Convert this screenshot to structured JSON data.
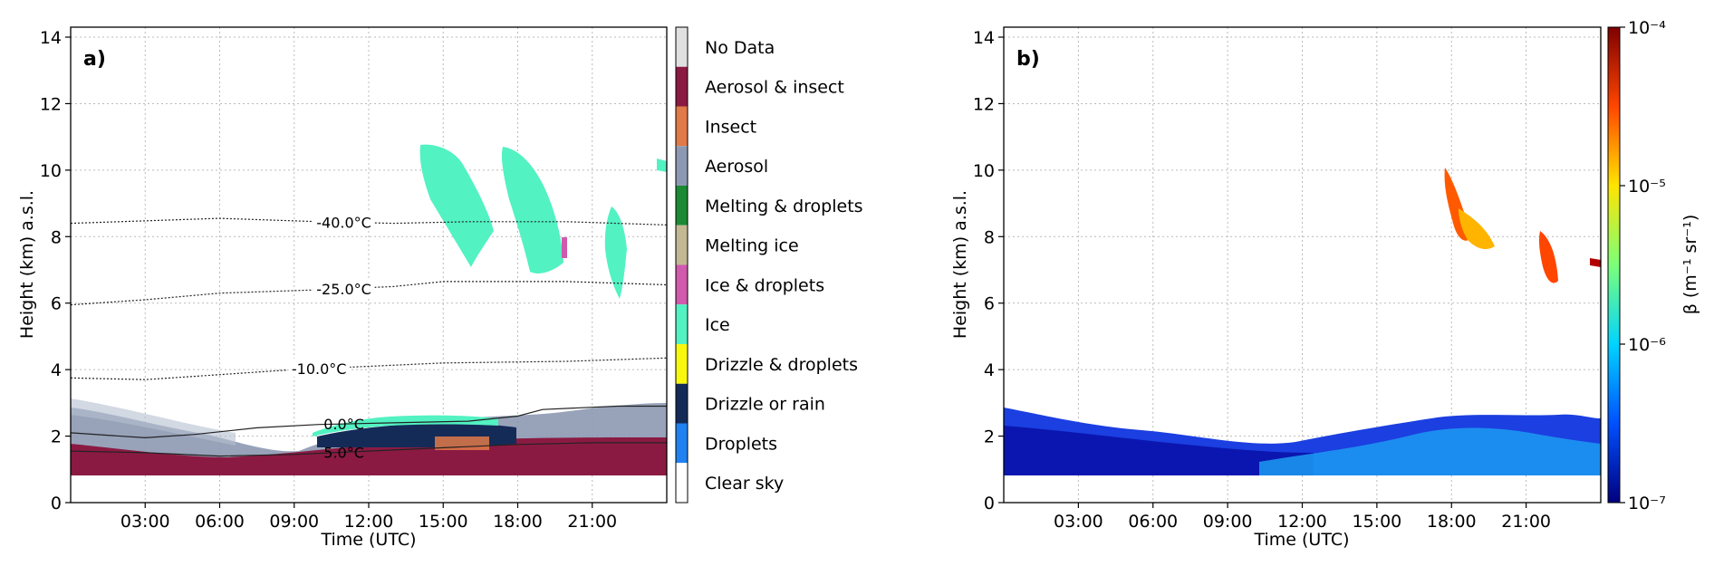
{
  "chart_data": [
    {
      "type": "heatmap",
      "panel_label": "a)",
      "xlabel": "Time (UTC)",
      "ylabel": "Height (km) a.s.l.",
      "xlim": [
        0,
        24
      ],
      "ylim": [
        0,
        14.3
      ],
      "x_ticks": [
        {
          "value": 3,
          "label": "03:00"
        },
        {
          "value": 6,
          "label": "06:00"
        },
        {
          "value": 9,
          "label": "09:00"
        },
        {
          "value": 12,
          "label": "12:00"
        },
        {
          "value": 15,
          "label": "15:00"
        },
        {
          "value": 18,
          "label": "18:00"
        },
        {
          "value": 21,
          "label": "21:00"
        }
      ],
      "y_ticks": [
        {
          "value": 0,
          "label": "0"
        },
        {
          "value": 2,
          "label": "2"
        },
        {
          "value": 4,
          "label": "4"
        },
        {
          "value": 6,
          "label": "6"
        },
        {
          "value": 8,
          "label": "8"
        },
        {
          "value": 10,
          "label": "10"
        },
        {
          "value": 12,
          "label": "12"
        },
        {
          "value": 14,
          "label": "14"
        }
      ],
      "grid": true,
      "colorbar_categories": [
        {
          "label": "No Data",
          "color": "#e0e0e0"
        },
        {
          "label": "Aerosol & insect",
          "color": "#8b1a42"
        },
        {
          "label": "Insect",
          "color": "#e07a48"
        },
        {
          "label": "Aerosol",
          "color": "#8d99b3"
        },
        {
          "label": "Melting & droplets",
          "color": "#1c8a34"
        },
        {
          "label": "Melting ice",
          "color": "#c2b894"
        },
        {
          "label": "Ice & droplets",
          "color": "#d05aac"
        },
        {
          "label": "Ice",
          "color": "#52f2c2"
        },
        {
          "label": "Drizzle & droplets",
          "color": "#f8f80e"
        },
        {
          "label": "Drizzle or rain",
          "color": "#142b58"
        },
        {
          "label": "Droplets",
          "color": "#1f82f0"
        },
        {
          "label": "Clear  sky",
          "color": "#ffffff"
        }
      ],
      "isotherms": [
        {
          "label": "-40.0°C",
          "label_x": 11.0,
          "points": [
            [
              0,
              8.4
            ],
            [
              6,
              8.55
            ],
            [
              10,
              8.45
            ],
            [
              13,
              8.4
            ],
            [
              16,
              8.45
            ],
            [
              20,
              8.45
            ],
            [
              24,
              8.35
            ]
          ]
        },
        {
          "label": "-25.0°C",
          "label_x": 11.0,
          "points": [
            [
              0,
              5.95
            ],
            [
              3,
              6.1
            ],
            [
              6,
              6.3
            ],
            [
              10,
              6.4
            ],
            [
              13,
              6.5
            ],
            [
              15,
              6.65
            ],
            [
              20,
              6.65
            ],
            [
              24,
              6.55
            ]
          ]
        },
        {
          "label": "-10.0°C",
          "label_x": 10.0,
          "points": [
            [
              0,
              3.75
            ],
            [
              3,
              3.7
            ],
            [
              6,
              3.85
            ],
            [
              9,
              4.0
            ],
            [
              12,
              4.1
            ],
            [
              15,
              4.2
            ],
            [
              20,
              4.25
            ],
            [
              24,
              4.35
            ]
          ]
        },
        {
          "label": "0.0°C",
          "label_x": 11.0,
          "points": [
            [
              0,
              2.1
            ],
            [
              3,
              1.95
            ],
            [
              5,
              2.05
            ],
            [
              7.5,
              2.25
            ],
            [
              10,
              2.35
            ],
            [
              13,
              2.4
            ],
            [
              16,
              2.45
            ],
            [
              18,
              2.6
            ],
            [
              19,
              2.8
            ],
            [
              22,
              2.9
            ],
            [
              24,
              2.9
            ]
          ]
        },
        {
          "label": "5.0°C",
          "label_x": 11.0,
          "points": [
            [
              0,
              1.55
            ],
            [
              3,
              1.5
            ],
            [
              6,
              1.4
            ],
            [
              9,
              1.45
            ],
            [
              12,
              1.55
            ],
            [
              15,
              1.65
            ],
            [
              18,
              1.75
            ],
            [
              21,
              1.8
            ],
            [
              24,
              1.8
            ]
          ]
        }
      ]
    },
    {
      "type": "heatmap",
      "panel_label": "b)",
      "xlabel": "Time (UTC)",
      "ylabel": "Height (km) a.s.l.",
      "xlim": [
        0,
        24
      ],
      "ylim": [
        0,
        14.3
      ],
      "x_ticks": [
        {
          "value": 3,
          "label": "03:00"
        },
        {
          "value": 6,
          "label": "06:00"
        },
        {
          "value": 9,
          "label": "09:00"
        },
        {
          "value": 12,
          "label": "12:00"
        },
        {
          "value": 15,
          "label": "15:00"
        },
        {
          "value": 18,
          "label": "18:00"
        },
        {
          "value": 21,
          "label": "21:00"
        }
      ],
      "y_ticks": [
        {
          "value": 0,
          "label": "0"
        },
        {
          "value": 2,
          "label": "2"
        },
        {
          "value": 4,
          "label": "4"
        },
        {
          "value": 6,
          "label": "6"
        },
        {
          "value": 8,
          "label": "8"
        },
        {
          "value": 10,
          "label": "10"
        },
        {
          "value": 12,
          "label": "12"
        },
        {
          "value": 14,
          "label": "14"
        }
      ],
      "grid": true,
      "colorbar": {
        "label": "β (m⁻¹ sr⁻¹)",
        "scale": "log",
        "range": [
          1e-07,
          0.0001
        ],
        "ticks": [
          {
            "value": 1e-07,
            "label": "10⁻⁷"
          },
          {
            "value": 1e-06,
            "label": "10⁻⁶"
          },
          {
            "value": 1e-05,
            "label": "10⁻⁵"
          },
          {
            "value": 0.0001,
            "label": "10⁻⁴"
          }
        ],
        "colormap": [
          "#00007f",
          "#0050ff",
          "#00d4ff",
          "#7cff79",
          "#ffe500",
          "#ff4600",
          "#7f0000"
        ]
      }
    }
  ]
}
